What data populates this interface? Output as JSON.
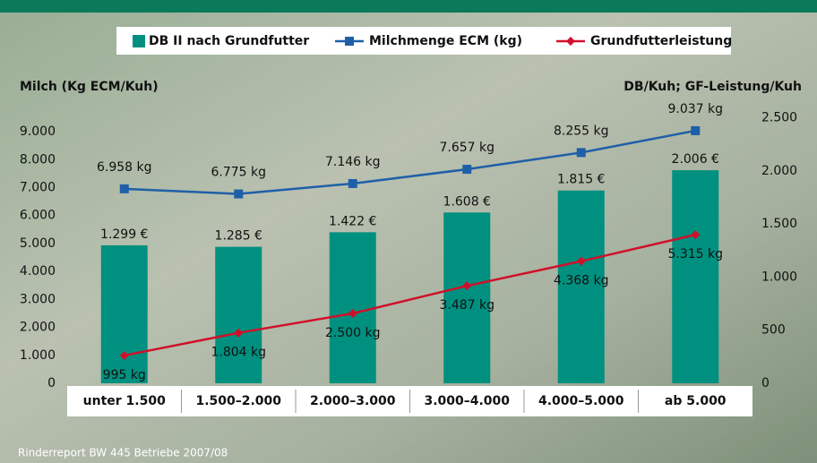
{
  "chart_data": {
    "type": "bar",
    "y_label": "Milch (Kg ECM/Kuh)",
    "y2_label": "DB/Kuh; GF-Leistung/Kuh",
    "source": "Rinderreport BW 445 Betriebe 2007/08",
    "categories": [
      "unter 1.500",
      "1.500–2.000",
      "2.000–3.000",
      "3.000–4.000",
      "4.000–5.000",
      "ab 5.000"
    ],
    "ylim": [
      0,
      9500
    ],
    "yticks": [
      {
        "value": 0,
        "label": "0"
      },
      {
        "value": 1000,
        "label": "1.000"
      },
      {
        "value": 2000,
        "label": "2.000"
      },
      {
        "value": 3000,
        "label": "3.000"
      },
      {
        "value": 4000,
        "label": "4.000"
      },
      {
        "value": 5000,
        "label": "5.000"
      },
      {
        "value": 6000,
        "label": "6.000"
      },
      {
        "value": 7000,
        "label": "7.000"
      },
      {
        "value": 8000,
        "label": "8.000"
      },
      {
        "value": 9000,
        "label": "9.000"
      }
    ],
    "y2lim": [
      0,
      2500
    ],
    "y2ticks": [
      0,
      500,
      {
        "value": 1000,
        "label": "1.000"
      },
      {
        "value": 1500,
        "label": "1.500"
      },
      {
        "value": 2000,
        "label": "2.000"
      },
      {
        "value": 2500,
        "label": "2.500"
      }
    ],
    "series": [
      {
        "name": "DB II nach Grundfutter",
        "type": "bar",
        "axis": "y2",
        "color": "#00907f",
        "values": [
          1299,
          1285,
          1422,
          1608,
          1815,
          2006
        ],
        "value_labels": [
          "1.299 €",
          "1.285 €",
          "1.422 €",
          "1.608 €",
          "1.815 €",
          "2.006 €"
        ]
      },
      {
        "name": "Milchmenge ECM (kg)",
        "type": "line",
        "marker": "square",
        "color": "#1f5fa8",
        "values": [
          6958,
          6775,
          7146,
          7657,
          8255,
          9037
        ],
        "value_labels": [
          "6.958 kg",
          "6.775 kg",
          "7.146 kg",
          "7.657 kg",
          "8.255 kg",
          "9.037 kg"
        ]
      },
      {
        "name": "Grundfutterleistung",
        "type": "line",
        "marker": "diamond",
        "color": "#d0102a",
        "values": [
          995,
          1804,
          2500,
          3487,
          4368,
          5315
        ],
        "value_labels": [
          "995 kg",
          "1.804 kg",
          "2.500 kg",
          "3.487 kg",
          "4.368 kg",
          "5.315 kg"
        ]
      }
    ]
  }
}
